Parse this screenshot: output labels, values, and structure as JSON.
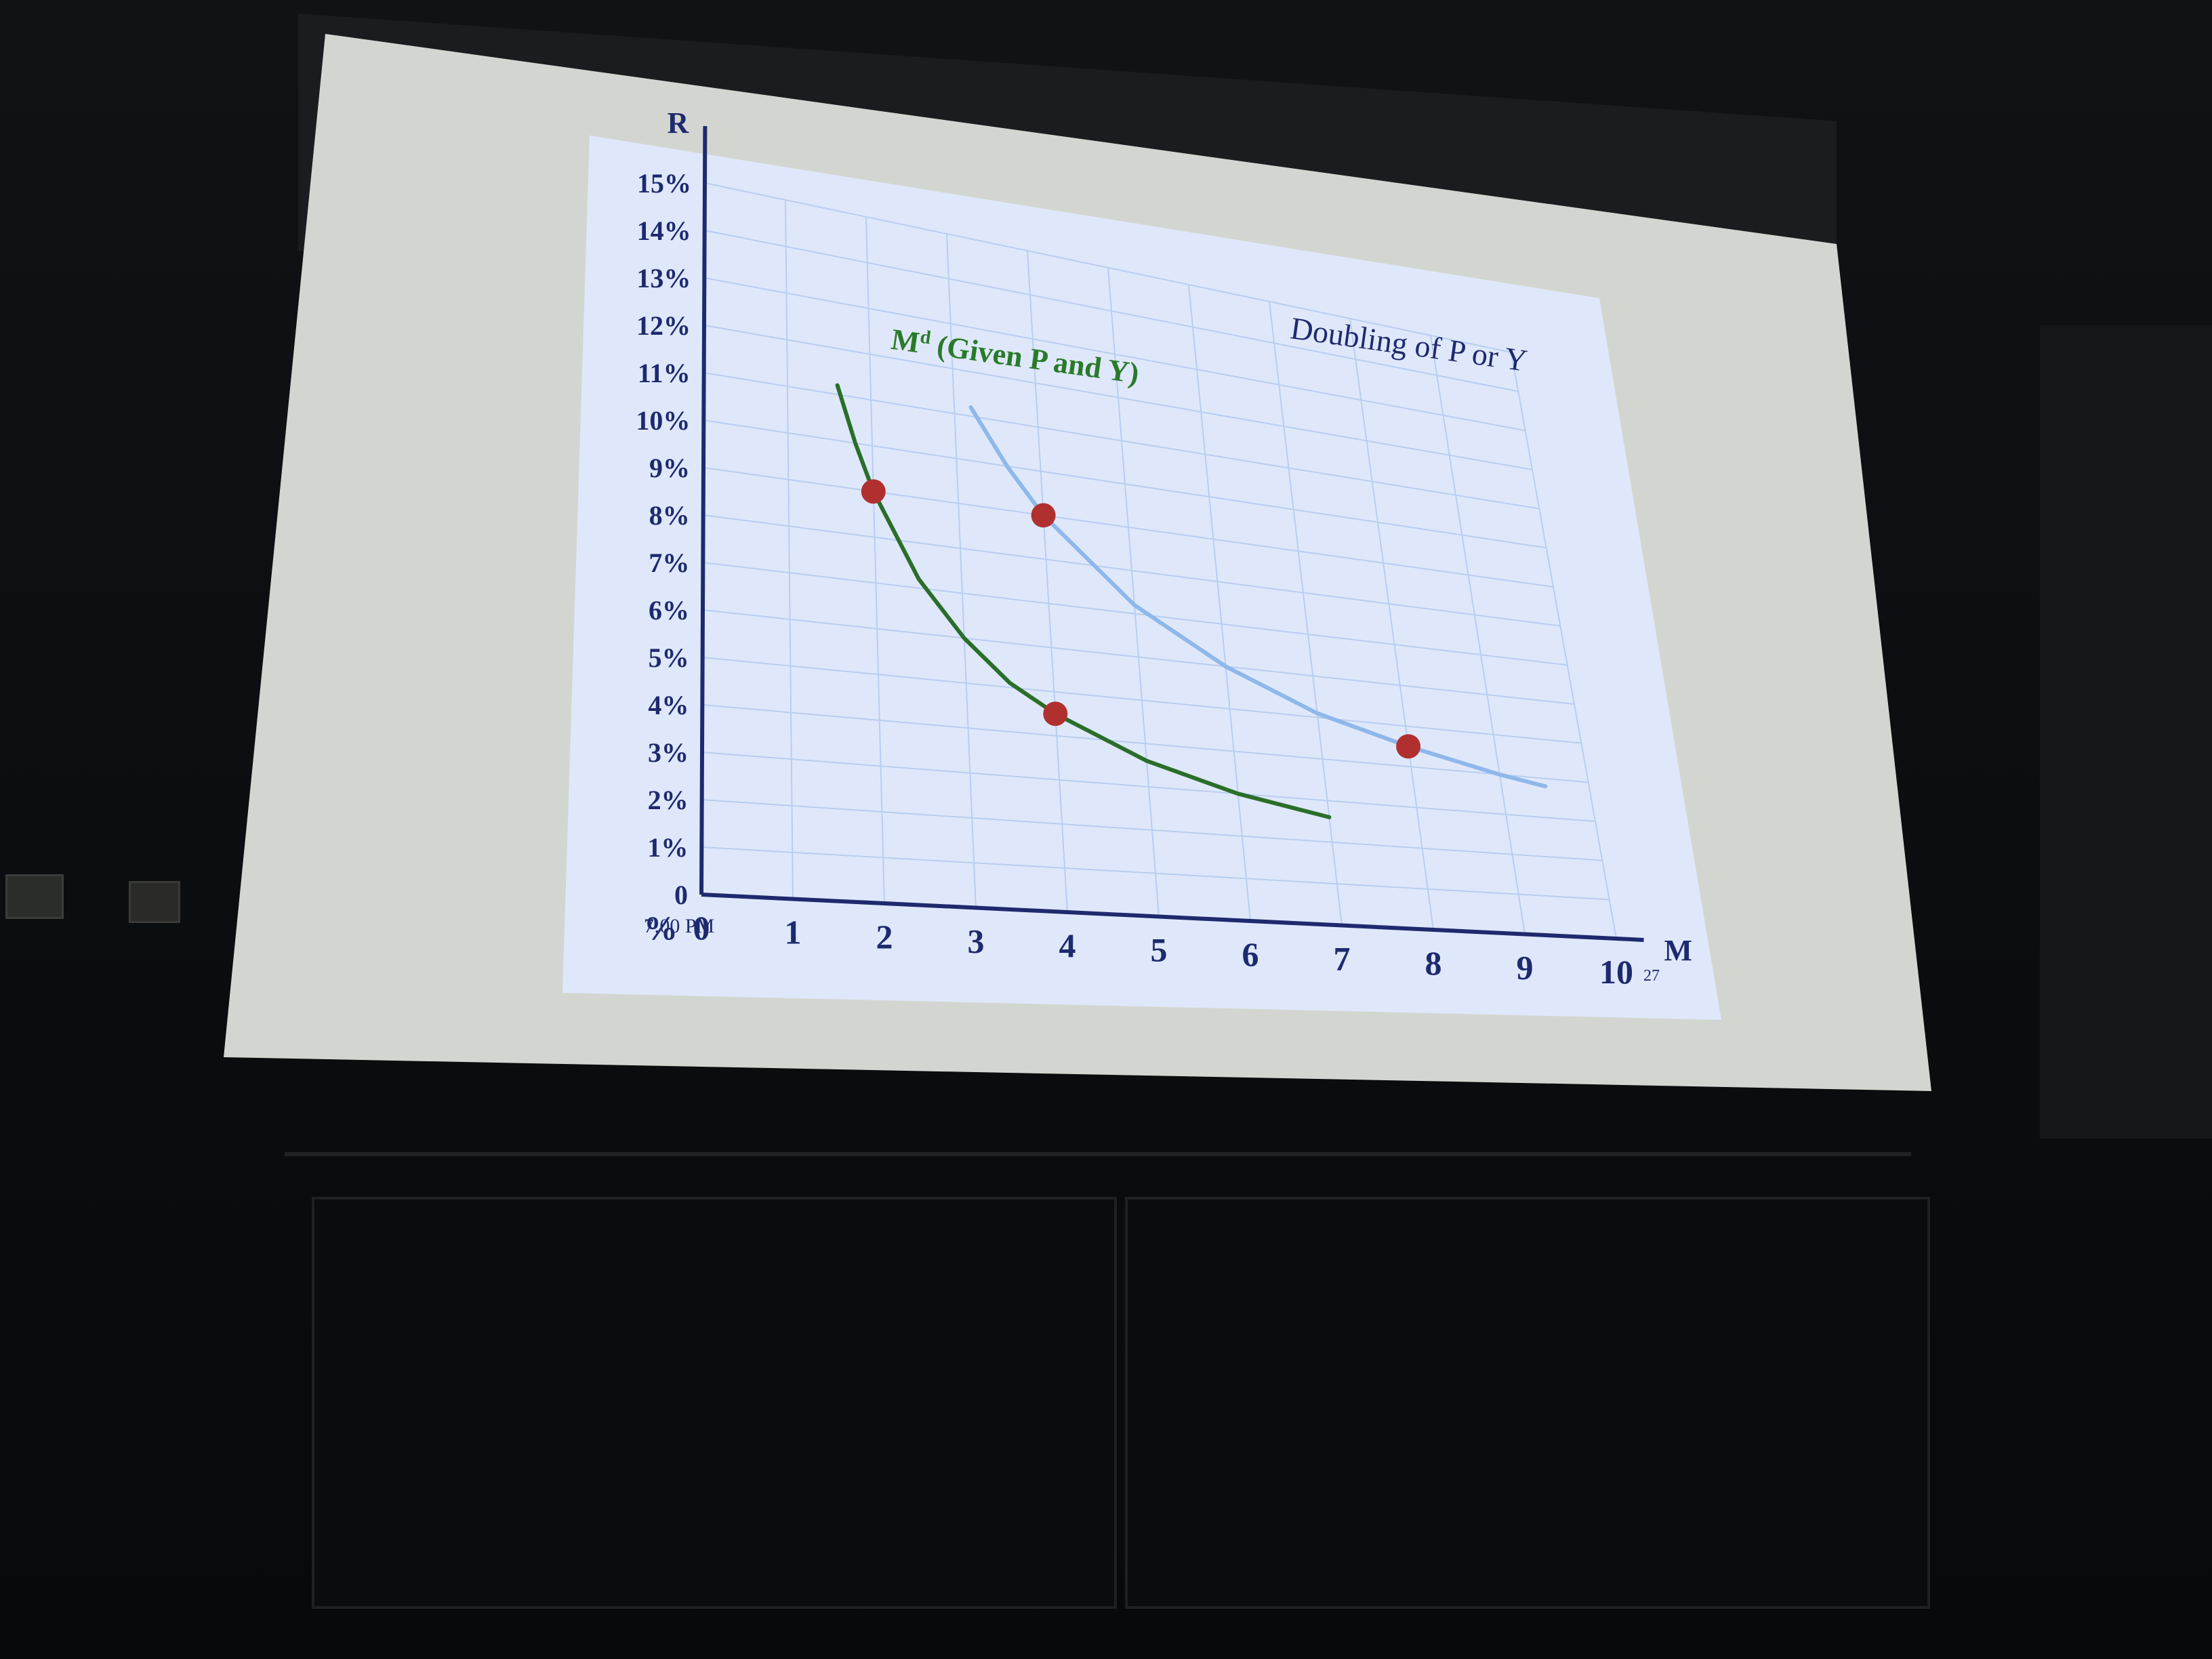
{
  "slide": {
    "title_text": "Doubling of P or Y",
    "curve_label_main": "M",
    "curve_label_sup": "d",
    "curve_label_rest": " (Given P and Y)",
    "y_axis_title": "R",
    "x_axis_title": "M",
    "footer_time": "7:00 PM",
    "slide_number": "27"
  },
  "colors": {
    "slide_bg": "#dfe8fb",
    "grid": "#b9cdf0",
    "axis": "#1e2a6e",
    "tick_text": "#1e2a6e",
    "curve_green": "#2a6e2a",
    "curve_blue": "#8fb8ea",
    "dot_red": "#b03030",
    "label_green": "#2a7a2a",
    "title_text": "#1e2a6e",
    "screen_border": "#d5d8d2"
  },
  "chart_data": {
    "type": "line",
    "title": "Doubling of P or Y",
    "xlabel": "M",
    "ylabel": "R",
    "xlim": [
      0,
      10
    ],
    "ylim": [
      0,
      15
    ],
    "x_tick_labels": [
      "0",
      "1",
      "2",
      "3",
      "4",
      "5",
      "6",
      "7",
      "8",
      "9",
      "10"
    ],
    "y_tick_labels": [
      "0",
      "1%",
      "2%",
      "3%",
      "4%",
      "5%",
      "6%",
      "7%",
      "8%",
      "9%",
      "10%",
      "11%",
      "12%",
      "13%",
      "14%",
      "15%"
    ],
    "extra_axis_label": "%",
    "grid": true,
    "series": [
      {
        "name": "Md (Given P and Y)",
        "x": [
          1.6,
          1.8,
          2.0,
          2.5,
          3.0,
          3.5,
          4.0,
          5.0,
          6.0,
          7.0
        ],
        "y": [
          11.2,
          10.0,
          9.0,
          7.2,
          6.0,
          5.1,
          4.5,
          3.6,
          3.0,
          2.6
        ]
      },
      {
        "x": [
          3.2,
          3.6,
          4.0,
          5.0,
          6.0,
          7.0,
          8.0,
          9.0,
          9.5
        ],
        "y": [
          11.2,
          10.0,
          9.0,
          7.2,
          6.0,
          5.1,
          4.5,
          4.0,
          3.8
        ]
      }
    ],
    "points": [
      {
        "x": 2.0,
        "y": 9.0
      },
      {
        "x": 4.0,
        "y": 9.0
      },
      {
        "x": 4.0,
        "y": 4.5
      },
      {
        "x": 8.0,
        "y": 4.5
      }
    ]
  }
}
